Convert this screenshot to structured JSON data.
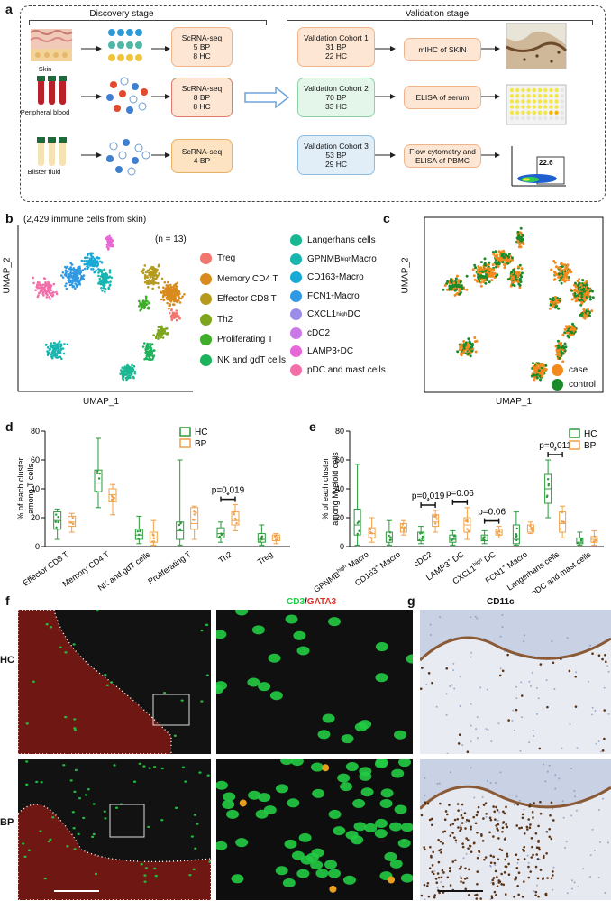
{
  "panel_labels": {
    "a": "a",
    "b": "b",
    "c": "c",
    "d": "d",
    "e": "e",
    "f": "f",
    "g": "g"
  },
  "panel_a": {
    "discovery_title": "Discovery stage",
    "validation_title": "Validation stage",
    "rows": [
      {
        "sample": "Skin",
        "scrna_title": "ScRNA-seq",
        "scrna_l1": "5 BP",
        "scrna_l2": "8 HC",
        "cohort_title": "Validation Cohort 1",
        "cohort_l1": "31 BP",
        "cohort_l2": "22 HC",
        "assay": "mIHC of SKIN"
      },
      {
        "sample": "Peripheral blood",
        "scrna_title": "ScRNA-seq",
        "scrna_l1": "8 BP",
        "scrna_l2": "8 HC",
        "cohort_title": "Validation Cohort 2",
        "cohort_l1": "70 BP",
        "cohort_l2": "33 HC",
        "assay": "ELISA of serum"
      },
      {
        "sample": "Blister fluid",
        "scrna_title": "ScRNA-seq",
        "scrna_l1": "4 BP",
        "scrna_l2": "",
        "cohort_title": "Validation Cohort 3",
        "cohort_l1": "53 BP",
        "cohort_l2": "29 HC",
        "assay": "Flow cytometry and ELISA of PBMC"
      }
    ],
    "flow_value": "22.6",
    "colors": {
      "scrna_fill": "#fde6d4",
      "scrna_border": "#f1b48a",
      "cohort1": "#fde6d4",
      "cohort2": "#e4f5ea",
      "cohort3": "#e1eef8",
      "assay_fill": "#fde6d4",
      "assay_border": "#f1b48a"
    }
  },
  "panel_b": {
    "header": "(2,429 immune cells from skin)",
    "n": "(n = 13)",
    "xlabel": "UMAP_1",
    "ylabel": "UMAP_2",
    "legend_left": [
      {
        "label": "Treg",
        "color": "#f2756e"
      },
      {
        "label": "Memory CD4 T",
        "color": "#d98a1c"
      },
      {
        "label": "Effector CD8 T",
        "color": "#b59a1e"
      },
      {
        "label": "Th2",
        "color": "#7da61c"
      },
      {
        "label": "Proliferating T",
        "color": "#3fae2a"
      },
      {
        "label": "NK and gdT cells",
        "color": "#1bb35b"
      }
    ],
    "legend_right": [
      {
        "label": "Langerhans cells",
        "color": "#19b893"
      },
      {
        "label": "GPNMB",
        "sup": "high",
        "label2": " Macro",
        "color": "#17b5b0"
      },
      {
        "label": "CD163",
        "sup": "+",
        "label2": " Macro",
        "color": "#18a9d6"
      },
      {
        "label": "FCN1",
        "sup": "+",
        "label2": " Macro",
        "color": "#2f9ae3"
      },
      {
        "label": "CXCL1",
        "sup": "high",
        "label2": " DC",
        "color": "#9b8cea"
      },
      {
        "label": "cDC2",
        "color": "#cb78e8"
      },
      {
        "label": "LAMP3",
        "sup": "+",
        "label2": " DC",
        "color": "#e767d6"
      },
      {
        "label": "pDC and mast cells",
        "color": "#f36ea8"
      }
    ]
  },
  "panel_c": {
    "xlabel": "UMAP_1",
    "ylabel": "UMAP_2",
    "legend": [
      {
        "label": "case",
        "color": "#f28a1e"
      },
      {
        "label": "control",
        "color": "#1a8a2a"
      }
    ]
  },
  "chart_data": [
    {
      "type": "box",
      "panel": "d",
      "ylabel": "% of each cluster among T cells",
      "ylim": [
        0,
        80
      ],
      "yticks": [
        0,
        20,
        40,
        60,
        80
      ],
      "categories": [
        "Effector CD8 T",
        "Memory CD4 T",
        "NK and gdT cells",
        "Proliferating T",
        "Th2",
        "Treg"
      ],
      "legend": [
        {
          "name": "HC",
          "color": "#2a9a3a"
        },
        {
          "name": "BP",
          "color": "#f0a048"
        }
      ],
      "series": [
        {
          "name": "HC",
          "boxes": [
            {
              "min": 5,
              "q1": 12,
              "med": 18,
              "q3": 24,
              "max": 26
            },
            {
              "min": 27,
              "q1": 38,
              "med": 44,
              "q3": 53,
              "max": 75
            },
            {
              "min": 2,
              "q1": 5,
              "med": 8,
              "q3": 12,
              "max": 21
            },
            {
              "min": 1,
              "q1": 5,
              "med": 11,
              "q3": 17,
              "max": 60
            },
            {
              "min": 3,
              "q1": 6,
              "med": 9,
              "q3": 13,
              "max": 17
            },
            {
              "min": 1,
              "q1": 3,
              "med": 5,
              "q3": 9,
              "max": 15
            }
          ]
        },
        {
          "name": "BP",
          "boxes": [
            {
              "min": 10,
              "q1": 14,
              "med": 17,
              "q3": 21,
              "max": 23
            },
            {
              "min": 22,
              "q1": 31,
              "med": 36,
              "q3": 40,
              "max": 43
            },
            {
              "min": 1,
              "q1": 3,
              "med": 6,
              "q3": 10,
              "max": 18
            },
            {
              "min": 5,
              "q1": 12,
              "med": 16,
              "q3": 27,
              "max": 28
            },
            {
              "min": 11,
              "q1": 15,
              "med": 18,
              "q3": 24,
              "max": 29
            },
            {
              "min": 2,
              "q1": 4,
              "med": 6,
              "q3": 8,
              "max": 9
            }
          ]
        }
      ],
      "annotations": [
        {
          "category": "Th2",
          "text": "p=0.019",
          "mark": "*"
        }
      ]
    },
    {
      "type": "box",
      "panel": "e",
      "ylabel": "% of each cluster among Myeloid cells",
      "ylim": [
        0,
        80
      ],
      "yticks": [
        0,
        20,
        40,
        60,
        80
      ],
      "categories": [
        "GPNMBhigh Macro",
        "CD163+ Macro",
        "cDC2",
        "LAMP3+ DC",
        "CXCL1high DC",
        "FCN1+ Macro",
        "Langerhans cells",
        "pDC and mast cells"
      ],
      "legend": [
        {
          "name": "HC",
          "color": "#2a9a3a"
        },
        {
          "name": "BP",
          "color": "#f0a048"
        }
      ],
      "series": [
        {
          "name": "HC",
          "boxes": [
            {
              "min": 1,
              "q1": 8,
              "med": 15,
              "q3": 26,
              "max": 57
            },
            {
              "min": 1,
              "q1": 3,
              "med": 6,
              "q3": 10,
              "max": 18
            },
            {
              "min": 2,
              "q1": 4,
              "med": 6,
              "q3": 10,
              "max": 14
            },
            {
              "min": 1,
              "q1": 3,
              "med": 5,
              "q3": 8,
              "max": 11
            },
            {
              "min": 2,
              "q1": 4,
              "med": 6,
              "q3": 8,
              "max": 11
            },
            {
              "min": 1,
              "q1": 2,
              "med": 5,
              "q3": 15,
              "max": 24
            },
            {
              "min": 20,
              "q1": 30,
              "med": 40,
              "q3": 50,
              "max": 60
            },
            {
              "min": 1,
              "q1": 2,
              "med": 3,
              "q3": 6,
              "max": 10
            }
          ]
        },
        {
          "name": "BP",
          "boxes": [
            {
              "min": 3,
              "q1": 6,
              "med": 9,
              "q3": 13,
              "max": 20
            },
            {
              "min": 8,
              "q1": 10,
              "med": 13,
              "q3": 16,
              "max": 18
            },
            {
              "min": 10,
              "q1": 14,
              "med": 17,
              "q3": 22,
              "max": 25
            },
            {
              "min": 5,
              "q1": 10,
              "med": 15,
              "q3": 20,
              "max": 27
            },
            {
              "min": 6,
              "q1": 8,
              "med": 10,
              "q3": 12,
              "max": 14
            },
            {
              "min": 9,
              "q1": 10,
              "med": 12,
              "q3": 15,
              "max": 17
            },
            {
              "min": 6,
              "q1": 10,
              "med": 16,
              "q3": 24,
              "max": 28
            },
            {
              "min": 1,
              "q1": 3,
              "med": 5,
              "q3": 7,
              "max": 11
            }
          ]
        }
      ],
      "annotations": [
        {
          "category": "cDC2",
          "text": "p=0.019",
          "mark": "*"
        },
        {
          "category": "LAMP3+ DC",
          "text": "p=0.06",
          "mark": ""
        },
        {
          "category": "CXCL1high DC",
          "text": "p=0.06",
          "mark": ""
        },
        {
          "category": "Langerhans cells",
          "text": "p=0.011",
          "mark": "*"
        }
      ]
    }
  ],
  "panel_f": {
    "title_a": "CD3",
    "title_sep": "/",
    "title_b": "GATA3",
    "row1": "HC",
    "row2": "BP",
    "colors": {
      "green": "#22cc44",
      "red": "#e0302a"
    }
  },
  "panel_g": {
    "title": "CD11c"
  }
}
